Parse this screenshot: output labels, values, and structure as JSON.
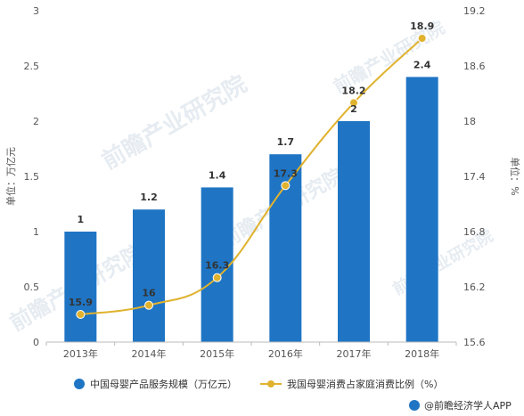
{
  "chart_data": {
    "type": "bar+line",
    "categories": [
      "2013年",
      "2014年",
      "2015年",
      "2016年",
      "2017年",
      "2018年"
    ],
    "series": [
      {
        "name": "中国母婴产品服务规模（万亿元）",
        "type": "bar",
        "axis": "left",
        "values": [
          1,
          1.2,
          1.4,
          1.7,
          2,
          2.4
        ],
        "labels": [
          "1",
          "1.2",
          "1.4",
          "1.7",
          "2",
          "2.4"
        ],
        "color": "#1f75c4"
      },
      {
        "name": "我国母婴消费占家庭消费比例（%）",
        "type": "line",
        "axis": "right",
        "values": [
          15.9,
          16,
          16.3,
          17.3,
          18.2,
          18.9
        ],
        "labels": [
          "15.9",
          "16",
          "16.3",
          "17.3",
          "18.2",
          "18.9"
        ],
        "color": "#e0b22e"
      }
    ],
    "left_axis": {
      "label": "单位：万亿元",
      "ylim": [
        0,
        3
      ],
      "ticks": [
        "0",
        "0.5",
        "1",
        "1.5",
        "2",
        "2.5",
        "3"
      ]
    },
    "right_axis": {
      "label": "单位：%",
      "ylim": [
        15.6,
        19.2
      ],
      "ticks": [
        "15.6",
        "16.2",
        "16.8",
        "17.4",
        "18",
        "18.6",
        "19.2"
      ]
    },
    "legend_position": "bottom"
  },
  "watermark": {
    "text": "前瞻产业研究院"
  },
  "source": {
    "text": "@前瞻经济学人APP"
  }
}
